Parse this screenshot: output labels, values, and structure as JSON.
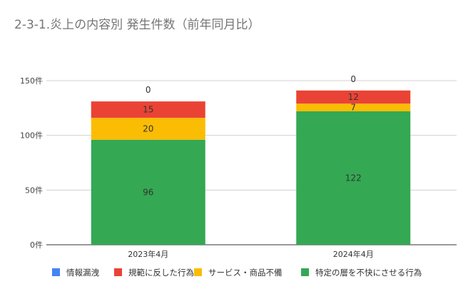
{
  "chart_data": {
    "type": "bar",
    "stacked": true,
    "title": "2-3-1.炎上の内容別 発生件数（前年同月比）",
    "xlabel": "",
    "ylabel": "",
    "ylim": [
      0,
      150
    ],
    "yticks": [
      0,
      50,
      100,
      150
    ],
    "ytick_labels": [
      "0件",
      "50件",
      "100件",
      "150件"
    ],
    "grid": true,
    "legend_position": "bottom",
    "categories": [
      "2023年4月",
      "2024年4月"
    ],
    "series": [
      {
        "name": "特定の層を不快にさせる行為",
        "color": "#34a853",
        "values": [
          96,
          122
        ]
      },
      {
        "name": "サービス・商品不備",
        "color": "#fbbc04",
        "values": [
          20,
          7
        ]
      },
      {
        "name": "規範に反した行為",
        "color": "#ea4335",
        "values": [
          15,
          12
        ]
      },
      {
        "name": "情報漏洩",
        "color": "#4285f4",
        "values": [
          0,
          0
        ]
      }
    ],
    "legend_order": [
      "情報漏洩",
      "規範に反した行為",
      "サービス・商品不備",
      "特定の層を不快にさせる行為"
    ]
  }
}
